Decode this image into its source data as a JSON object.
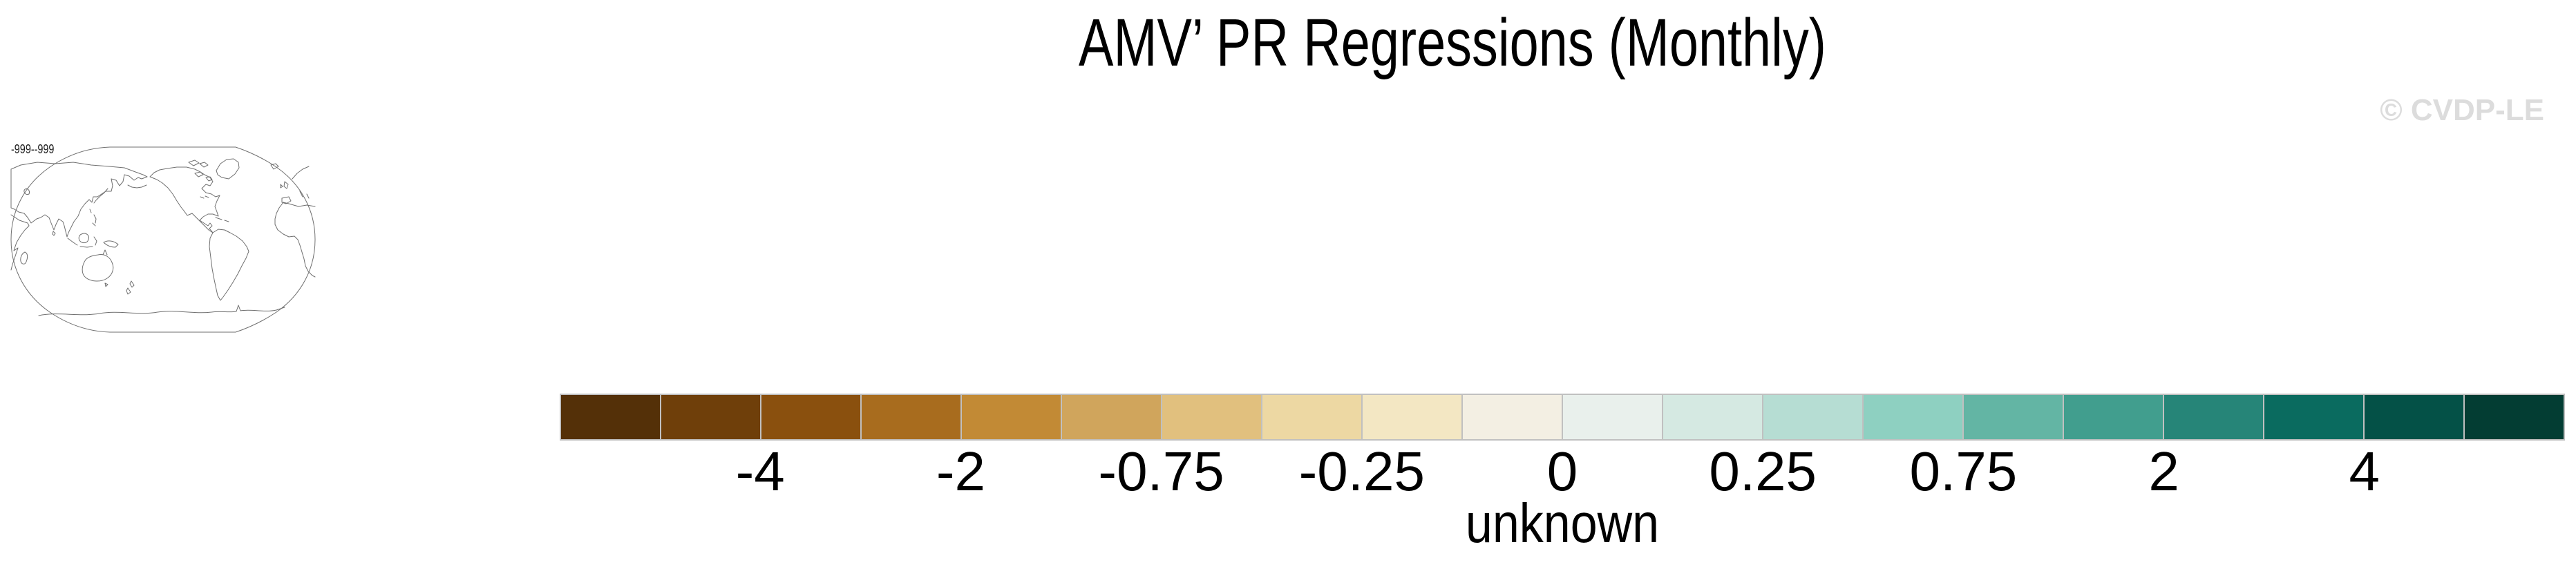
{
  "watermark": "© CVDP-LE",
  "chart_data": {
    "type": "heatmap",
    "title": "AMV’ PR Regressions (Monthly)",
    "range_label": "-999--999",
    "units_label": "unknown",
    "legend_position": "bottom",
    "map_thumbnail": {
      "description": "world map coastline outline, Pacific-centered, no data shading"
    },
    "colorbar": {
      "n_cells": 20,
      "cell_colors": [
        "#543008",
        "#6f3f0a",
        "#8a500e",
        "#a86c1e",
        "#c28a35",
        "#d0a55c",
        "#e1c07e",
        "#edd8a3",
        "#f3e7c3",
        "#f3efe3",
        "#e9f0ec",
        "#d5e9e2",
        "#b6ddd3",
        "#8ed0c1",
        "#63b5a4",
        "#419e8e",
        "#268578",
        "#0a6b5f",
        "#045147",
        "#033d33"
      ],
      "ticks": [
        {
          "label": "-4",
          "boundary_index": 2
        },
        {
          "label": "-2",
          "boundary_index": 4
        },
        {
          "label": "-0.75",
          "boundary_index": 6
        },
        {
          "label": "-0.25",
          "boundary_index": 8
        },
        {
          "label": "0",
          "boundary_index": 10
        },
        {
          "label": "0.25",
          "boundary_index": 12
        },
        {
          "label": "0.75",
          "boundary_index": 14
        },
        {
          "label": "2",
          "boundary_index": 16
        },
        {
          "label": "4",
          "boundary_index": 18
        }
      ]
    }
  }
}
